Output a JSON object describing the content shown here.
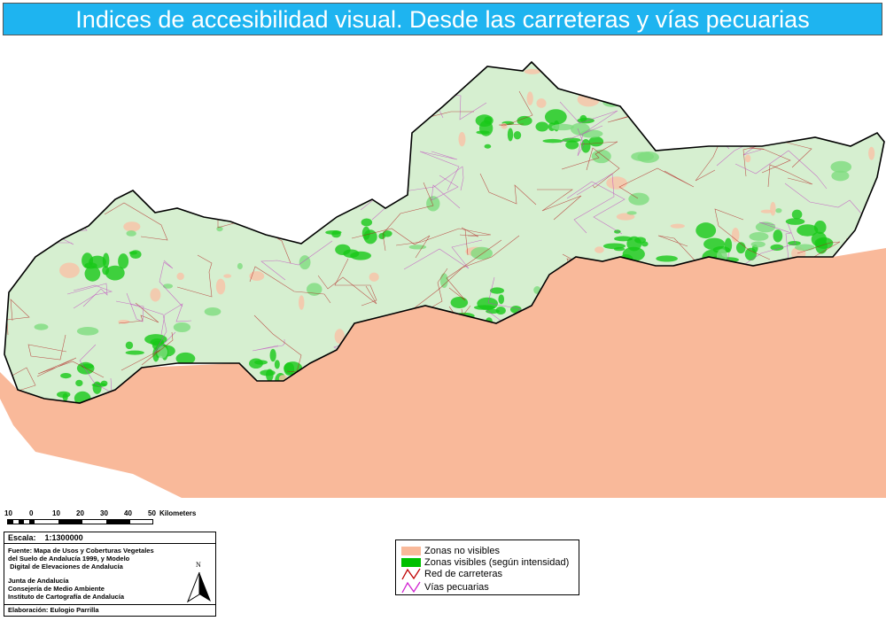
{
  "title": "Indices de accesibilidad visual. Desde las carreteras y vías pecuarias",
  "colors": {
    "title_bg": "#1eb4f0",
    "no_visible": "#f9b99a",
    "visible": "#00c000",
    "carreteras": "#c00000",
    "vias": "#d020d0",
    "base_visible": "#d6efd0"
  },
  "scale_bar": {
    "ticks": [
      "10",
      "0",
      "10",
      "20",
      "30",
      "40",
      "50"
    ],
    "unit": "Kilometers"
  },
  "info": {
    "scale_label": "Escala:",
    "scale_value": "1:1300000",
    "source_lines": [
      "Fuente: Mapa de Usos y Coberturas Vegetales",
      "del Suelo de Andalucía 1999, y Modelo",
      " Digital de Elevaciones de Andalucía"
    ],
    "org_lines": [
      "Junta de Andalucía",
      "Consejería de Medio Ambiente",
      "Instituto de Cartografía de Andalucía"
    ],
    "north": "N",
    "credit": "Elaboración: Eulogio Parrilla"
  },
  "legend": [
    {
      "label": "Zonas no visibles",
      "icon": "fill-swatch"
    },
    {
      "label": "Zonas visibles (según intensidad)",
      "icon": "fill-swatch"
    },
    {
      "label": "Red de carreteras",
      "icon": "line-zigzag"
    },
    {
      "label": "Vías pecuarias",
      "icon": "line-zigzag"
    }
  ]
}
